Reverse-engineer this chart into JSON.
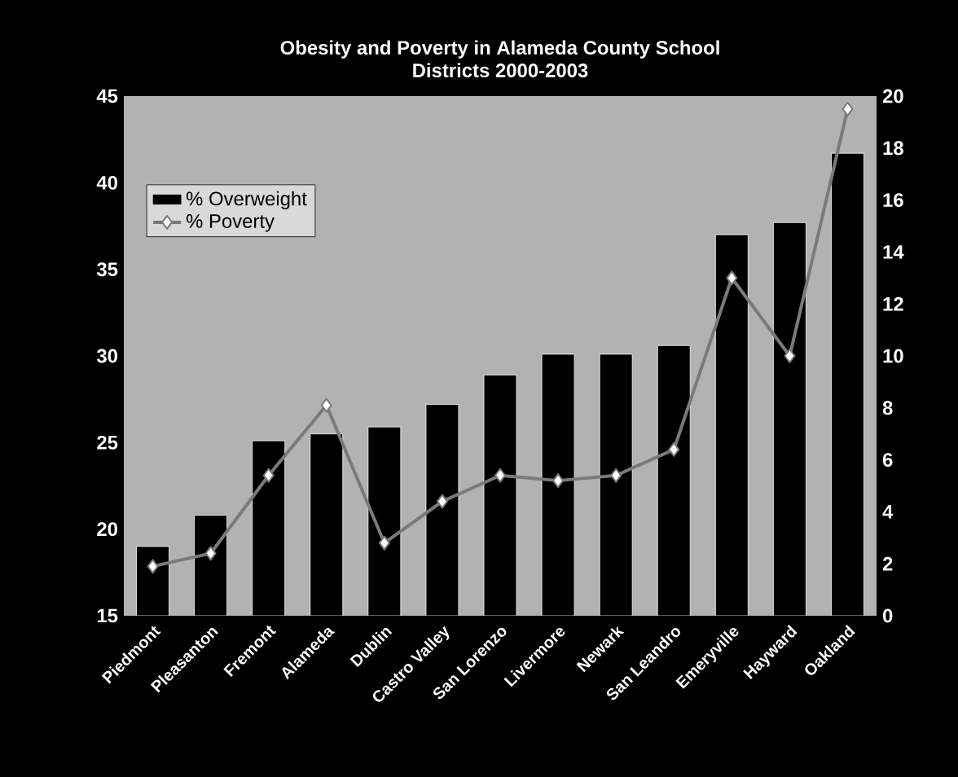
{
  "chart_data": {
    "type": "bar",
    "title": "Obesity and Poverty in Alameda County School Districts 2000-2003",
    "categories": [
      "Piedmont",
      "Pleasanton",
      "Fremont",
      "Alameda",
      "Dublin",
      "Castro Valley",
      "San Lorenzo",
      "Livermore",
      "Newark",
      "San Leandro",
      "Emeryville",
      "Hayward",
      "Oakland"
    ],
    "series": [
      {
        "name": "% Overweight",
        "color": "#000000",
        "values": [
          19.0,
          20.8,
          25.1,
          25.5,
          25.9,
          27.2,
          28.9,
          30.1,
          30.1,
          30.6,
          37.0,
          37.7,
          41.7
        ]
      },
      {
        "name": "% Poverty",
        "type": "line",
        "axis": "y2",
        "color": "#7a7a7a",
        "values": [
          1.9,
          2.4,
          5.4,
          8.1,
          2.8,
          4.4,
          5.4,
          5.2,
          5.4,
          6.4,
          13.0,
          10.0,
          19.5
        ]
      }
    ],
    "ylim": [
      15,
      45
    ],
    "yticks": [
      15,
      20,
      25,
      30,
      35,
      40,
      45
    ],
    "y2lim": [
      0,
      20
    ],
    "y2ticks": [
      0,
      2,
      4,
      6,
      8,
      10,
      12,
      14,
      16,
      18,
      20
    ],
    "legend": "top left",
    "marker": "diamond",
    "grid": false
  }
}
